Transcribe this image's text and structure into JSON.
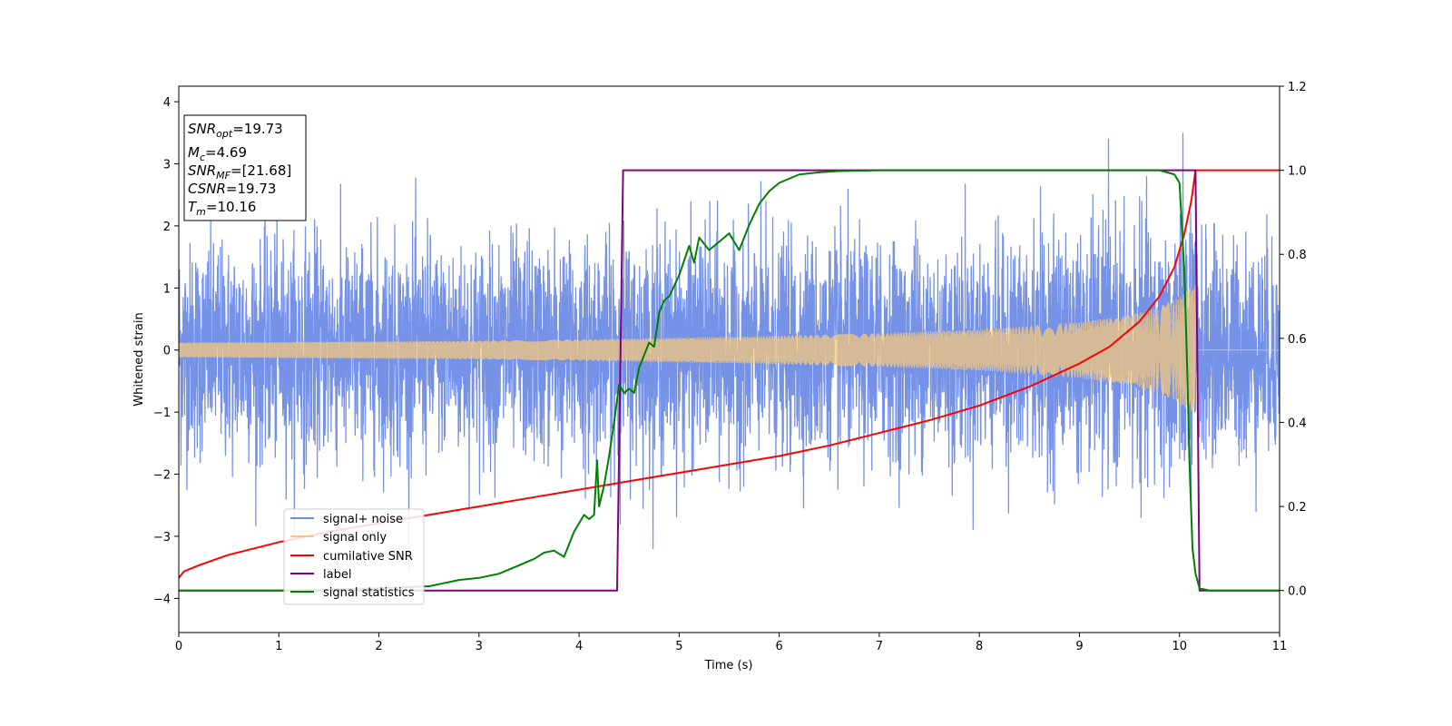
{
  "chart_data": {
    "type": "line",
    "xlabel": "Time (s)",
    "ylabel": "Whitened strain",
    "xlim": [
      0,
      11
    ],
    "ylim_left": [
      -4.55,
      4.25
    ],
    "ylim_right": [
      -0.1,
      1.2
    ],
    "x_ticks": [
      "0",
      "1",
      "2",
      "3",
      "4",
      "5",
      "6",
      "7",
      "8",
      "9",
      "10",
      "11"
    ],
    "y_ticks_left": [
      "−4",
      "−3",
      "−2",
      "−1",
      "0",
      "1",
      "2",
      "3",
      "4"
    ],
    "y_ticks_right": [
      "0.0",
      "0.2",
      "0.4",
      "0.6",
      "0.8",
      "1.0",
      "1.2"
    ],
    "grid": false,
    "legend_position": "lower-left",
    "info_box": {
      "snr_opt": "=19.73",
      "mc": "=4.69",
      "snr_mf": "=[21.68]",
      "csnr": "=19.73",
      "tm": "=10.16"
    },
    "series": [
      {
        "name": "signal+ noise",
        "axis": "left",
        "color": "#6f8ce6",
        "description_points": {
          "x": [
            0,
            11
          ],
          "noise_std": 0.85,
          "extremes": {
            "min": -4.15,
            "max": 3.85
          }
        }
      },
      {
        "name": "signal only",
        "axis": "left",
        "color": "#f5c77e",
        "envelope": {
          "t": [
            0,
            1,
            2,
            3,
            4,
            5,
            6,
            7,
            8,
            9,
            9.5,
            9.8,
            10.0,
            10.1,
            10.16,
            10.2,
            11
          ],
          "amp": [
            0.12,
            0.13,
            0.14,
            0.15,
            0.17,
            0.2,
            0.23,
            0.27,
            0.33,
            0.45,
            0.56,
            0.7,
            0.85,
            1.0,
            1.05,
            0.0,
            0.0
          ]
        }
      },
      {
        "name": "cumilative SNR",
        "axis": "right",
        "color": "#ff0000",
        "x": [
          0,
          0.05,
          0.2,
          0.5,
          1,
          1.5,
          2,
          2.5,
          3,
          3.5,
          4,
          4.5,
          5,
          5.5,
          6,
          6.5,
          7,
          7.5,
          8,
          8.5,
          9,
          9.3,
          9.6,
          9.8,
          9.95,
          10.05,
          10.12,
          10.16,
          10.2,
          11
        ],
        "y": [
          0.03,
          0.045,
          0.06,
          0.085,
          0.115,
          0.14,
          0.16,
          0.18,
          0.2,
          0.22,
          0.24,
          0.26,
          0.28,
          0.3,
          0.32,
          0.345,
          0.375,
          0.405,
          0.44,
          0.485,
          0.54,
          0.58,
          0.64,
          0.7,
          0.77,
          0.85,
          0.93,
          1.0,
          1.0,
          1.0
        ]
      },
      {
        "name": "label",
        "axis": "right",
        "color": "#800080",
        "x": [
          0,
          4.38,
          4.44,
          10.16,
          10.2,
          11
        ],
        "y": [
          0.0,
          0.0,
          1.0,
          1.0,
          0.0,
          0.0
        ]
      },
      {
        "name": "signal statistics",
        "axis": "right",
        "color": "#008000",
        "x": [
          0,
          1,
          2,
          2.5,
          2.8,
          3.0,
          3.2,
          3.4,
          3.55,
          3.65,
          3.75,
          3.85,
          3.95,
          4.05,
          4.1,
          4.15,
          4.18,
          4.2,
          4.25,
          4.3,
          4.35,
          4.4,
          4.45,
          4.5,
          4.55,
          4.6,
          4.65,
          4.7,
          4.75,
          4.8,
          4.85,
          4.9,
          5.0,
          5.1,
          5.15,
          5.2,
          5.3,
          5.35,
          5.4,
          5.5,
          5.6,
          5.7,
          5.8,
          5.9,
          6.0,
          6.2,
          6.4,
          6.6,
          6.8,
          7.0,
          8.0,
          9.0,
          9.8,
          9.95,
          10.0,
          10.05,
          10.08,
          10.1,
          10.13,
          10.16,
          10.2,
          10.3,
          11
        ],
        "y": [
          0.0,
          0.0,
          0.005,
          0.01,
          0.025,
          0.03,
          0.04,
          0.06,
          0.075,
          0.09,
          0.095,
          0.08,
          0.14,
          0.18,
          0.17,
          0.18,
          0.31,
          0.2,
          0.25,
          0.32,
          0.4,
          0.49,
          0.47,
          0.48,
          0.47,
          0.53,
          0.56,
          0.59,
          0.58,
          0.66,
          0.69,
          0.7,
          0.75,
          0.82,
          0.78,
          0.84,
          0.81,
          0.82,
          0.83,
          0.85,
          0.81,
          0.87,
          0.92,
          0.95,
          0.97,
          0.99,
          0.995,
          0.998,
          0.999,
          1.0,
          1.0,
          1.0,
          1.0,
          0.99,
          0.97,
          0.75,
          0.5,
          0.3,
          0.1,
          0.04,
          0.005,
          0.0,
          0.0
        ]
      }
    ]
  }
}
